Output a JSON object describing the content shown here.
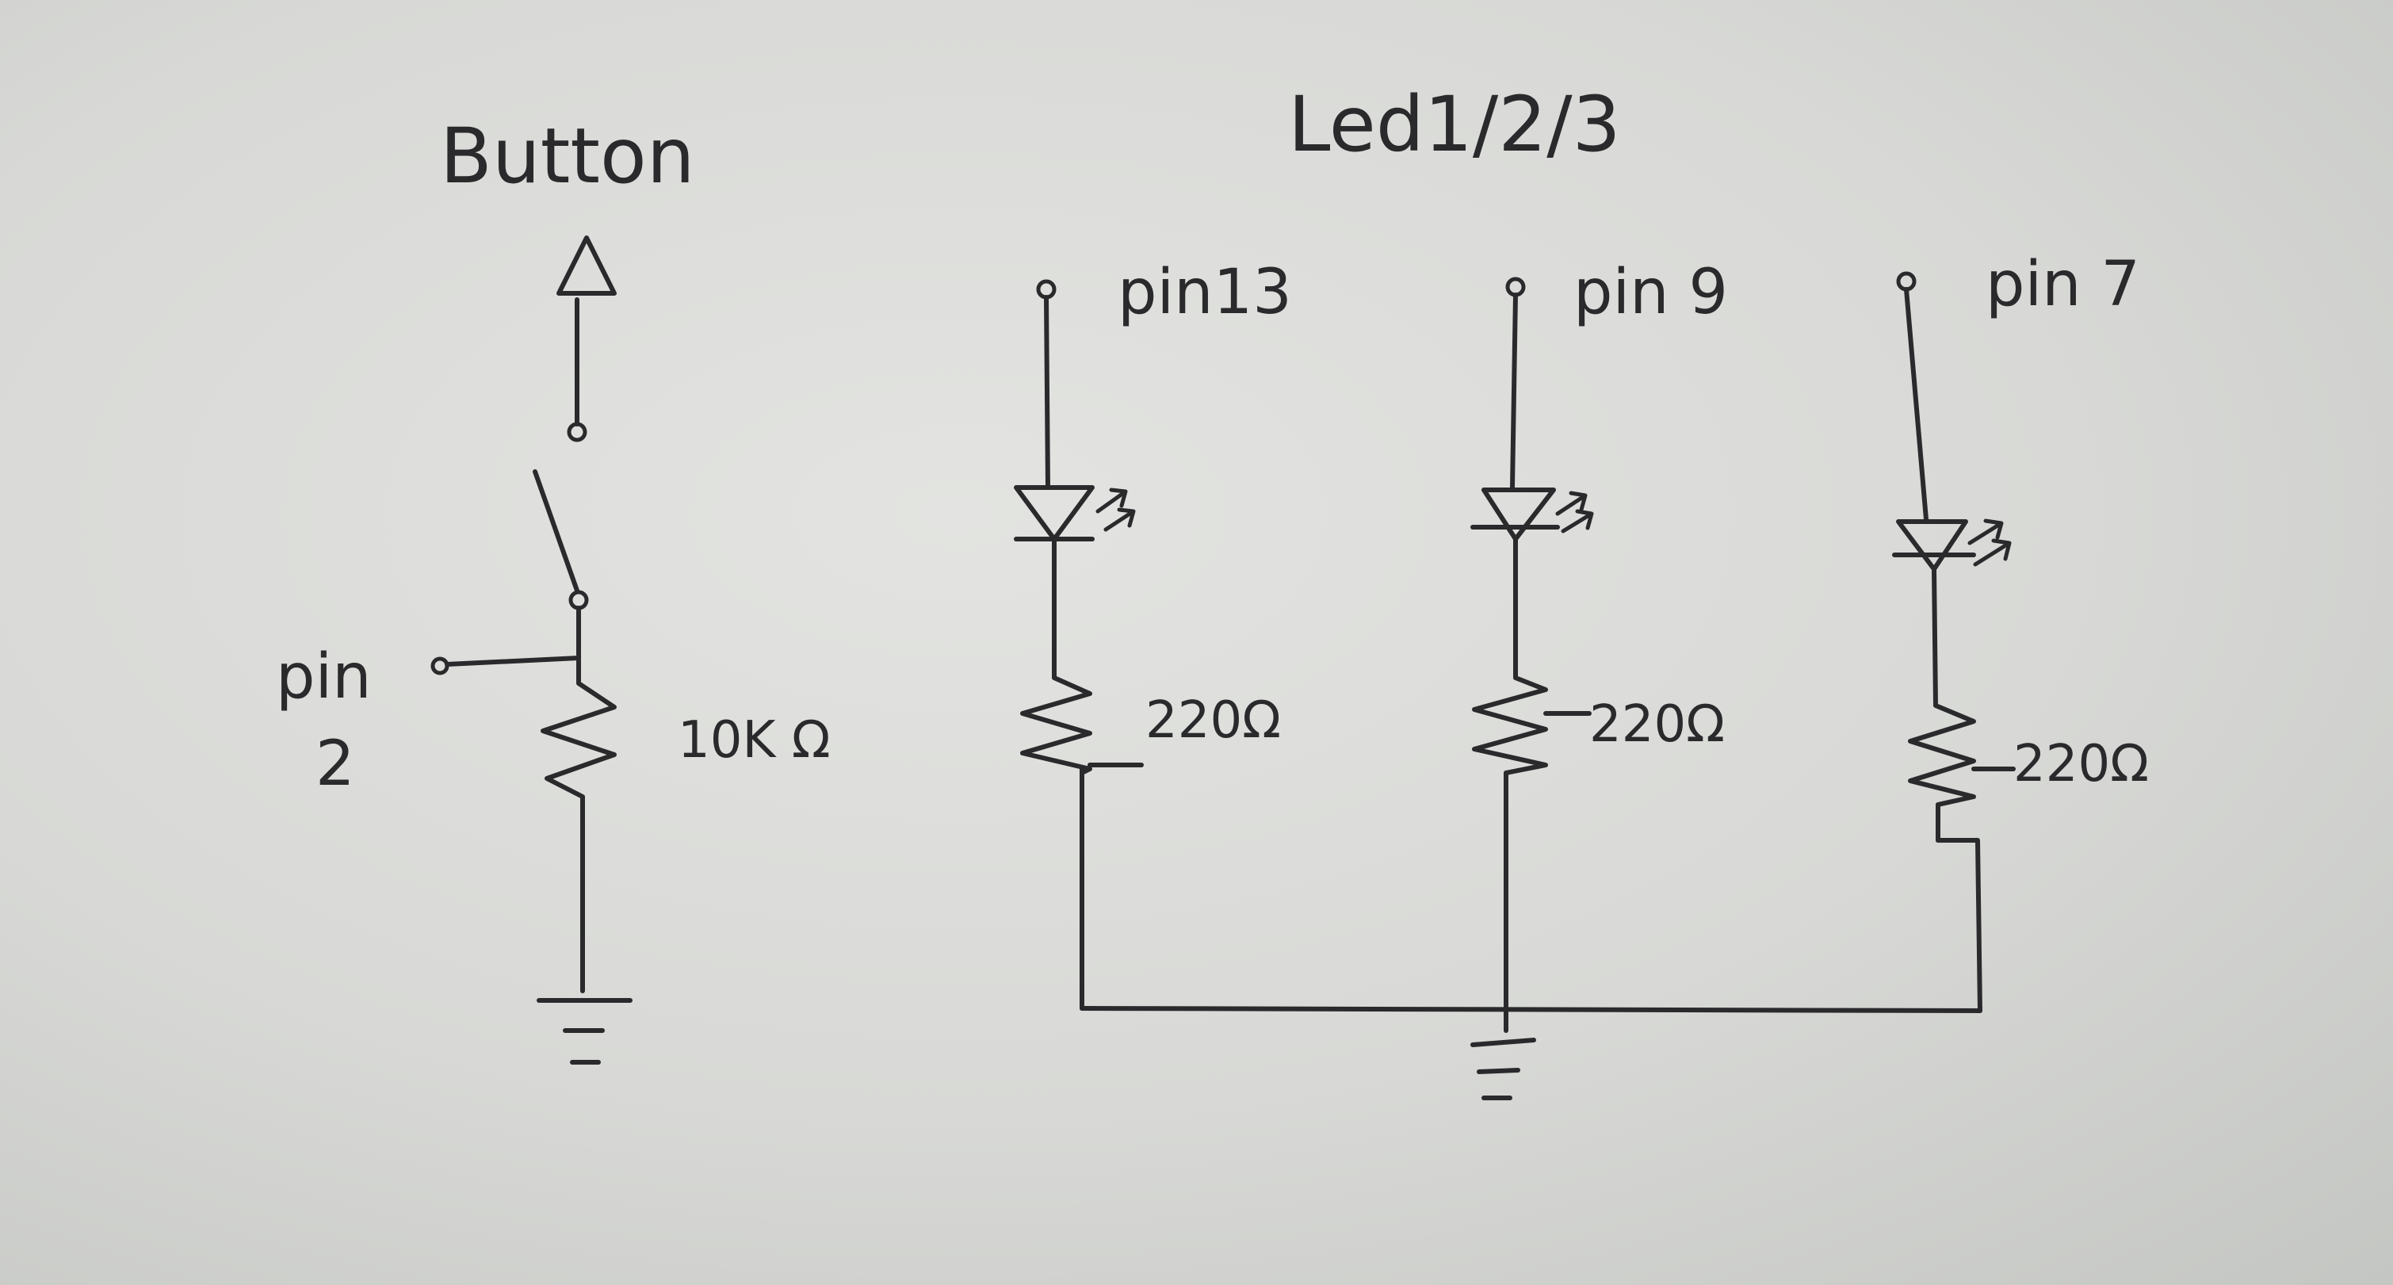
{
  "diagram": {
    "button_section": {
      "title": "Button",
      "pin_label_line1": "pin",
      "pin_label_line2": "2",
      "resistor_label": "10K Ω"
    },
    "led_section": {
      "title": "Led1/2/3",
      "branches": [
        {
          "pin_label": "pin13",
          "resistor_label": "220Ω"
        },
        {
          "pin_label": "pin 9",
          "resistor_label": "220Ω"
        },
        {
          "pin_label": "pin 7",
          "resistor_label": "220Ω"
        }
      ]
    }
  }
}
